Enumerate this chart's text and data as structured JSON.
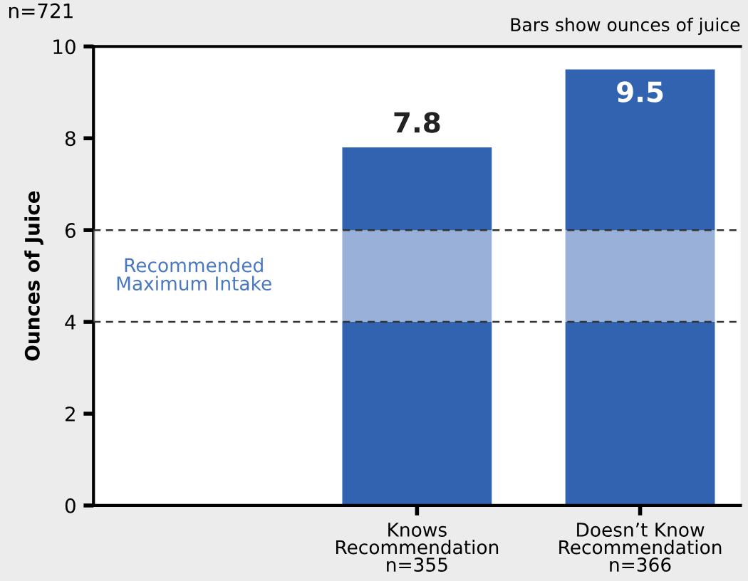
{
  "chart_data": {
    "type": "bar",
    "title": "n=721",
    "ylabel": "Ounces of Juice",
    "categories": [
      null,
      "Knows\nRecommendation\nn=355",
      "Doesn’t Know\nRecommendation\nn=366"
    ],
    "values": [
      null,
      7.8,
      9.5
    ],
    "color": "#3263b0",
    "data_labels": true,
    "ylim": [
      0,
      10
    ],
    "yticks": [
      0,
      2,
      4,
      6,
      8,
      10
    ],
    "bands": [
      {
        "axis": "y",
        "from": 4,
        "to": 6,
        "label": "Recommended\nMaximum Intake"
      }
    ],
    "ref_lines": [
      {
        "axis": "y",
        "value": 6,
        "line_style": "dashed"
      },
      {
        "axis": "y",
        "value": 4,
        "line_style": "dashed"
      }
    ],
    "annotations": [
      "Bars show ounces of juice"
    ]
  }
}
